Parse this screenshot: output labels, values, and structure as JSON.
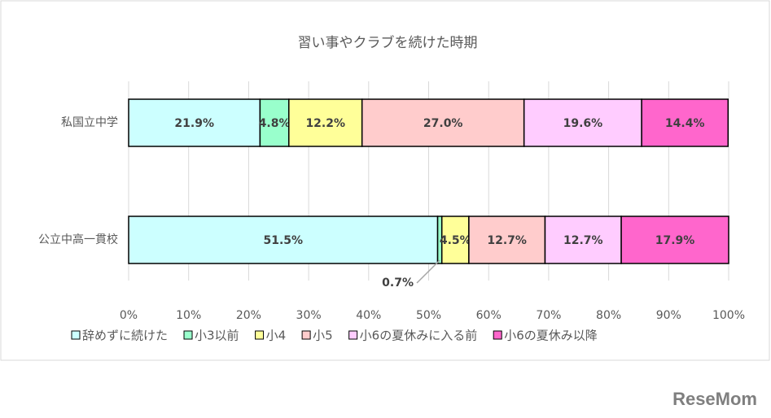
{
  "chart_data": {
    "type": "stacked-bar",
    "orientation": "horizontal",
    "title": "習い事やクラブを続けた時期",
    "categories": [
      "私国立中学",
      "公立中高一貫校"
    ],
    "series": [
      {
        "name": "辞めずに続けた",
        "color": "#ccffff",
        "values": [
          21.9,
          51.5
        ],
        "value_labels": [
          "21.9%",
          "51.5%"
        ]
      },
      {
        "name": "小3以前",
        "color": "#99ffcc",
        "values": [
          4.8,
          0.7
        ],
        "value_labels": [
          "4.8%",
          "0.7%"
        ]
      },
      {
        "name": "小4",
        "color": "#ffff99",
        "values": [
          12.2,
          4.5
        ],
        "value_labels": [
          "12.2%",
          "4.5%"
        ]
      },
      {
        "name": "小5",
        "color": "#ffcccc",
        "values": [
          27.0,
          12.7
        ],
        "value_labels": [
          "27.0%",
          "12.7%"
        ]
      },
      {
        "name": "小6の夏休みに入る前",
        "color": "#ffccff",
        "values": [
          19.6,
          12.7
        ],
        "value_labels": [
          "19.6%",
          "12.7%"
        ]
      },
      {
        "name": "小6の夏休み以降",
        "color": "#ff66cc",
        "values": [
          14.4,
          17.9
        ],
        "value_labels": [
          "14.4%",
          "17.9%"
        ]
      }
    ],
    "xlim": [
      0,
      100
    ],
    "xticks": [
      {
        "value": 0,
        "label": "0%"
      },
      {
        "value": 10,
        "label": "10%"
      },
      {
        "value": 20,
        "label": "20%"
      },
      {
        "value": 30,
        "label": "30%"
      },
      {
        "value": 40,
        "label": "40%"
      },
      {
        "value": 50,
        "label": "50%"
      },
      {
        "value": 60,
        "label": "60%"
      },
      {
        "value": 70,
        "label": "70%"
      },
      {
        "value": 80,
        "label": "80%"
      },
      {
        "value": 90,
        "label": "90%"
      },
      {
        "value": 100,
        "label": "100%"
      }
    ],
    "grid": true,
    "legend": "bottom",
    "watermark": "ReseMom"
  }
}
